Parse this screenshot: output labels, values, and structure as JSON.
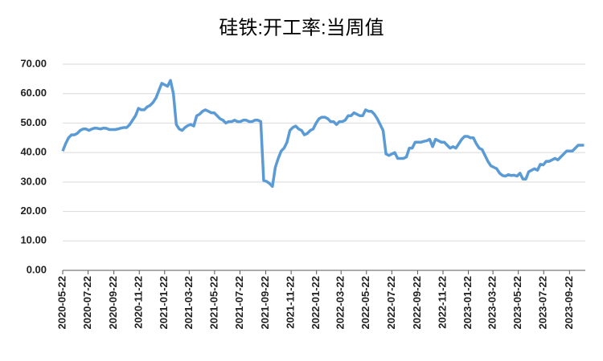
{
  "chart_data": {
    "type": "line",
    "title": "硅铁:开工率:当周值",
    "x": [
      "2020-05-22",
      "2020-05-29",
      "2020-06-05",
      "2020-06-12",
      "2020-06-19",
      "2020-06-26",
      "2020-07-03",
      "2020-07-10",
      "2020-07-17",
      "2020-07-24",
      "2020-07-31",
      "2020-08-07",
      "2020-08-14",
      "2020-08-21",
      "2020-08-28",
      "2020-09-04",
      "2020-09-11",
      "2020-09-18",
      "2020-09-25",
      "2020-10-02",
      "2020-10-09",
      "2020-10-16",
      "2020-10-23",
      "2020-10-30",
      "2020-11-06",
      "2020-11-13",
      "2020-11-20",
      "2020-11-27",
      "2020-12-04",
      "2020-12-11",
      "2020-12-18",
      "2020-12-25",
      "2021-01-01",
      "2021-01-08",
      "2021-01-15",
      "2021-01-22",
      "2021-01-29",
      "2021-02-05",
      "2021-02-12",
      "2021-02-19",
      "2021-02-26",
      "2021-03-05",
      "2021-03-12",
      "2021-03-19",
      "2021-03-26",
      "2021-04-02",
      "2021-04-09",
      "2021-04-16",
      "2021-04-23",
      "2021-04-30",
      "2021-05-07",
      "2021-05-14",
      "2021-05-21",
      "2021-05-28",
      "2021-06-04",
      "2021-06-11",
      "2021-06-18",
      "2021-06-25",
      "2021-07-02",
      "2021-07-09",
      "2021-07-16",
      "2021-07-23",
      "2021-07-30",
      "2021-08-06",
      "2021-08-13",
      "2021-08-20",
      "2021-08-27",
      "2021-09-03",
      "2021-09-10",
      "2021-09-17",
      "2021-09-24",
      "2021-10-01",
      "2021-10-08",
      "2021-10-15",
      "2021-10-22",
      "2021-10-29",
      "2021-11-05",
      "2021-11-12",
      "2021-11-19",
      "2021-11-26",
      "2021-12-03",
      "2021-12-10",
      "2021-12-17",
      "2021-12-24",
      "2021-12-31",
      "2022-01-07",
      "2022-01-14",
      "2022-01-21",
      "2022-01-28",
      "2022-02-04",
      "2022-02-11",
      "2022-02-18",
      "2022-02-25",
      "2022-03-04",
      "2022-03-11",
      "2022-03-18",
      "2022-03-25",
      "2022-04-01",
      "2022-04-08",
      "2022-04-15",
      "2022-04-22",
      "2022-04-29",
      "2022-05-06",
      "2022-05-13",
      "2022-05-20",
      "2022-05-27",
      "2022-06-03",
      "2022-06-10",
      "2022-06-17",
      "2022-06-24",
      "2022-07-01",
      "2022-07-08",
      "2022-07-15",
      "2022-07-22",
      "2022-07-29",
      "2022-08-05",
      "2022-08-12",
      "2022-08-19",
      "2022-08-26",
      "2022-09-02",
      "2022-09-09",
      "2022-09-16",
      "2022-09-23",
      "2022-09-30",
      "2022-10-07",
      "2022-10-14",
      "2022-10-21",
      "2022-10-28",
      "2022-11-04",
      "2022-11-11",
      "2022-11-18",
      "2022-11-25",
      "2022-12-02",
      "2022-12-09",
      "2022-12-16",
      "2022-12-23",
      "2022-12-30",
      "2023-01-06",
      "2023-01-13",
      "2023-01-20",
      "2023-01-27",
      "2023-02-03",
      "2023-02-10",
      "2023-02-17",
      "2023-02-24",
      "2023-03-03",
      "2023-03-10",
      "2023-03-17",
      "2023-03-24",
      "2023-03-31",
      "2023-04-07",
      "2023-04-14",
      "2023-04-21",
      "2023-04-28",
      "2023-05-05",
      "2023-05-12",
      "2023-05-19",
      "2023-05-26",
      "2023-06-02",
      "2023-06-09",
      "2023-06-16",
      "2023-06-23",
      "2023-06-30",
      "2023-07-07",
      "2023-07-14",
      "2023-07-21",
      "2023-07-28",
      "2023-08-04",
      "2023-08-11",
      "2023-08-18",
      "2023-08-25",
      "2023-09-01",
      "2023-09-08",
      "2023-09-15",
      "2023-09-22",
      "2023-09-29",
      "2023-10-06",
      "2023-10-13",
      "2023-10-20",
      "2023-10-27"
    ],
    "values": [
      40.5,
      43,
      45,
      46,
      46,
      46.5,
      47.5,
      48,
      48,
      47.5,
      48,
      48.3,
      48.2,
      48,
      48.3,
      48.2,
      47.8,
      47.8,
      47.8,
      48,
      48.3,
      48.5,
      48.5,
      49.5,
      51,
      52.5,
      55,
      54.5,
      54.5,
      55.5,
      56,
      57,
      58.5,
      61,
      63.5,
      63,
      62.5,
      64.5,
      60,
      49.5,
      48,
      47.5,
      48.5,
      49.2,
      49.5,
      49,
      52.5,
      53,
      54,
      54.5,
      54,
      53.5,
      53.5,
      52.5,
      51.5,
      51,
      50,
      50.5,
      50.5,
      51,
      50.5,
      50.5,
      51,
      51,
      50.5,
      50.5,
      51,
      51,
      50.5,
      30.5,
      30.2,
      29.5,
      28.5,
      35,
      38,
      40.5,
      41.5,
      43.5,
      47.5,
      48.5,
      49,
      48,
      47.5,
      46,
      46.5,
      47.5,
      48,
      50,
      51.5,
      52,
      52,
      51.5,
      50.5,
      50.5,
      49.5,
      50.5,
      50.5,
      51,
      52.5,
      52.5,
      53.5,
      53,
      52.5,
      52.5,
      54.5,
      54,
      54,
      53,
      51.5,
      49.5,
      47.5,
      39.5,
      39,
      39.5,
      40,
      38,
      38,
      38,
      38.5,
      41.5,
      41.5,
      43.5,
      43.5,
      43.5,
      43.8,
      44,
      44.5,
      42,
      44.5,
      44,
      43.5,
      43.5,
      42.5,
      41.5,
      42,
      41.5,
      43,
      44.5,
      45.5,
      45.5,
      45,
      45,
      43,
      41.5,
      41,
      39,
      37,
      35.5,
      35,
      34.5,
      33,
      32.2,
      32,
      32.5,
      32.2,
      32.3,
      32,
      33,
      31,
      31,
      33.5,
      34,
      34.5,
      34,
      36,
      35.8,
      37,
      37,
      37.5,
      38,
      37.5,
      38.5,
      39.5,
      40.5,
      40.5,
      40.5,
      41.5,
      42.5,
      42.5,
      42.5
    ],
    "color": "#5b9bd5",
    "xlim": [
      "2020-05-22",
      "2023-10-30"
    ],
    "xticks": [
      "2020-05-22",
      "2020-07-22",
      "2020-09-22",
      "2020-11-22",
      "2021-01-22",
      "2021-03-22",
      "2021-05-22",
      "2021-07-22",
      "2021-09-22",
      "2021-11-22",
      "2022-01-22",
      "2022-03-22",
      "2022-05-22",
      "2022-07-22",
      "2022-09-22",
      "2022-11-22",
      "2023-01-22",
      "2023-03-22",
      "2023-05-22",
      "2023-07-22",
      "2023-09-22"
    ],
    "ylim": [
      0,
      70
    ],
    "yticks": [
      {
        "value": 0,
        "label": "0.00"
      },
      {
        "value": 10,
        "label": "10.00"
      },
      {
        "value": 20,
        "label": "20.00"
      },
      {
        "value": 30,
        "label": "30.00"
      },
      {
        "value": 40,
        "label": "40.00"
      },
      {
        "value": 50,
        "label": "50.00"
      },
      {
        "value": 60,
        "label": "60.00"
      },
      {
        "value": 70,
        "label": "70.00"
      }
    ],
    "grid": true
  }
}
